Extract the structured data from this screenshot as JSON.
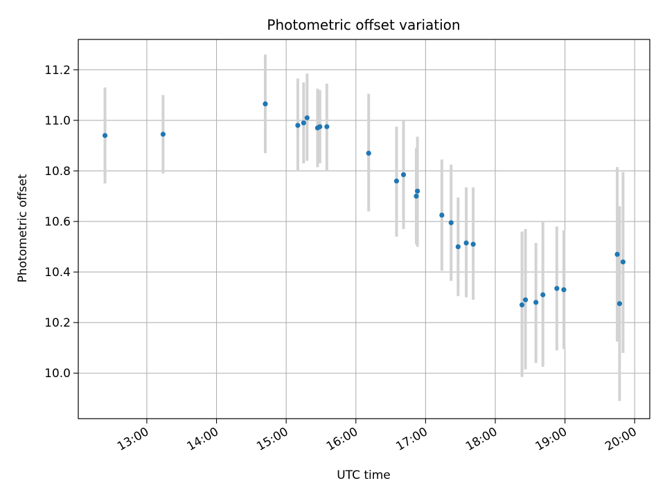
{
  "chart_data": {
    "type": "scatter",
    "title": "Photometric offset variation",
    "xlabel": "UTC time",
    "ylabel": "Photometric offset",
    "grid": true,
    "xlim": [
      "12:01",
      "20:13"
    ],
    "ylim": [
      9.82,
      11.32
    ],
    "x_ticks": [
      "13:00",
      "14:00",
      "15:00",
      "16:00",
      "17:00",
      "18:00",
      "19:00",
      "20:00"
    ],
    "y_ticks": [
      10.0,
      10.2,
      10.4,
      10.6,
      10.8,
      11.0,
      11.2
    ],
    "marker_color": "#1f77b4",
    "errorbar_color": "#d3d3d3",
    "series": [
      {
        "points": [
          {
            "x": "12:24",
            "y": 10.94,
            "lo": 10.75,
            "hi": 11.13
          },
          {
            "x": "13:14",
            "y": 10.945,
            "lo": 10.79,
            "hi": 11.1
          },
          {
            "x": "14:42",
            "y": 11.065,
            "lo": 10.87,
            "hi": 11.26
          },
          {
            "x": "15:10",
            "y": 10.98,
            "lo": 10.8,
            "hi": 11.165
          },
          {
            "x": "15:15",
            "y": 10.99,
            "lo": 10.83,
            "hi": 11.15
          },
          {
            "x": "15:18",
            "y": 11.01,
            "lo": 10.84,
            "hi": 11.185
          },
          {
            "x": "15:27",
            "y": 10.97,
            "lo": 10.815,
            "hi": 11.125
          },
          {
            "x": "15:29",
            "y": 10.975,
            "lo": 10.83,
            "hi": 11.12
          },
          {
            "x": "15:35",
            "y": 10.975,
            "lo": 10.8,
            "hi": 11.145
          },
          {
            "x": "16:11",
            "y": 10.87,
            "lo": 10.64,
            "hi": 11.105
          },
          {
            "x": "16:35",
            "y": 10.76,
            "lo": 10.54,
            "hi": 10.975
          },
          {
            "x": "16:41",
            "y": 10.785,
            "lo": 10.57,
            "hi": 11.0
          },
          {
            "x": "16:52",
            "y": 10.7,
            "lo": 10.51,
            "hi": 10.89
          },
          {
            "x": "16:53",
            "y": 10.72,
            "lo": 10.5,
            "hi": 10.935
          },
          {
            "x": "17:14",
            "y": 10.625,
            "lo": 10.405,
            "hi": 10.845
          },
          {
            "x": "17:22",
            "y": 10.595,
            "lo": 10.365,
            "hi": 10.825
          },
          {
            "x": "17:28",
            "y": 10.5,
            "lo": 10.305,
            "hi": 10.695
          },
          {
            "x": "17:35",
            "y": 10.515,
            "lo": 10.3,
            "hi": 10.735
          },
          {
            "x": "17:41",
            "y": 10.51,
            "lo": 10.29,
            "hi": 10.735
          },
          {
            "x": "18:23",
            "y": 10.27,
            "lo": 9.985,
            "hi": 10.56
          },
          {
            "x": "18:26",
            "y": 10.29,
            "lo": 10.015,
            "hi": 10.57
          },
          {
            "x": "18:35",
            "y": 10.28,
            "lo": 10.04,
            "hi": 10.515
          },
          {
            "x": "18:41",
            "y": 10.31,
            "lo": 10.025,
            "hi": 10.6
          },
          {
            "x": "18:53",
            "y": 10.335,
            "lo": 10.09,
            "hi": 10.58
          },
          {
            "x": "18:59",
            "y": 10.33,
            "lo": 10.095,
            "hi": 10.565
          },
          {
            "x": "19:45",
            "y": 10.47,
            "lo": 10.125,
            "hi": 10.815
          },
          {
            "x": "19:47",
            "y": 10.275,
            "lo": 9.89,
            "hi": 10.66
          },
          {
            "x": "19:50",
            "y": 10.44,
            "lo": 10.08,
            "hi": 10.795
          }
        ]
      }
    ]
  }
}
